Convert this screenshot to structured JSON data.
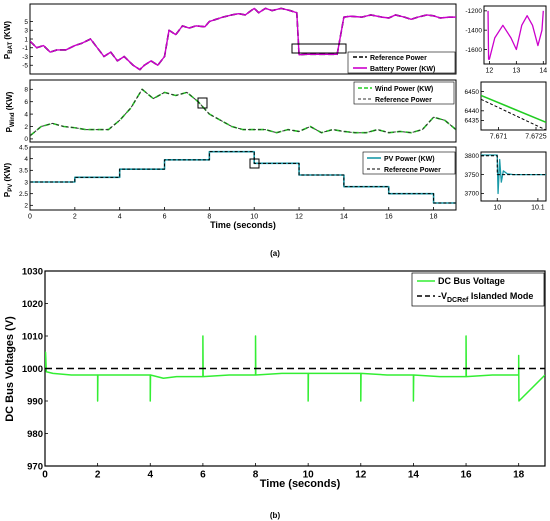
{
  "captions": {
    "a": "(a)",
    "b": "(b)"
  },
  "chart_data": [
    {
      "id": "bat",
      "type": "line",
      "ylabel": "P_BAT (KW)",
      "xlim": [
        0,
        19
      ],
      "ylim": [
        -7,
        9
      ],
      "yticks": [
        -5,
        -3,
        -1,
        1,
        3,
        5
      ],
      "xticks": [],
      "grid": false,
      "legend_position": "bottom-right",
      "series": [
        {
          "name": "Reference Power",
          "color": "#000000",
          "dash": "6 3",
          "width": 1.6,
          "x": [
            0,
            0.3,
            0.6,
            0.9,
            1.2,
            1.6,
            2.0,
            2.3,
            2.7,
            3.0,
            3.3,
            3.6,
            3.9,
            4.2,
            4.6,
            4.9,
            5.1,
            5.4,
            5.7,
            6.0,
            6.2,
            6.5,
            6.8,
            7.1,
            7.4,
            7.8,
            8.0,
            8.3,
            8.6,
            9.0,
            9.3,
            9.6,
            10.0,
            10.2,
            10.5,
            10.8,
            11.2,
            11.6,
            11.9,
            12.0,
            12.3,
            12.8,
            13.2,
            13.7,
            14.0,
            14.3,
            14.8,
            15.2,
            15.7,
            16.0,
            16.3,
            16.7,
            17.0,
            17.3,
            17.7,
            18.0,
            18.3,
            18.7,
            19.0
          ],
          "y": [
            0.5,
            -1,
            -0.5,
            -2,
            -1.5,
            -1.5,
            -0.5,
            0,
            1,
            -1,
            -3,
            -2,
            -4,
            -3,
            -5,
            -6,
            -5,
            -4,
            -5,
            -3,
            3,
            2,
            4,
            3.5,
            4,
            3.8,
            5,
            5.5,
            6,
            6.5,
            6.8,
            6.5,
            8,
            7,
            8,
            7.5,
            8,
            7.5,
            7,
            -2.6,
            -2.5,
            -2.5,
            -2.5,
            -2.5,
            6,
            6.2,
            6,
            6.5,
            6,
            5.8,
            6.5,
            6,
            5.5,
            6,
            6.5,
            6.3,
            5.8,
            6,
            6
          ]
        },
        {
          "name": "Battery Power (KW)",
          "color": "#cc00cc",
          "dash": "",
          "width": 1.4,
          "x": [
            0,
            0.3,
            0.6,
            0.9,
            1.2,
            1.6,
            2.0,
            2.3,
            2.7,
            3.0,
            3.3,
            3.6,
            3.9,
            4.2,
            4.6,
            4.9,
            5.1,
            5.4,
            5.7,
            6.0,
            6.2,
            6.5,
            6.8,
            7.1,
            7.4,
            7.8,
            8.0,
            8.3,
            8.6,
            9.0,
            9.3,
            9.6,
            10.0,
            10.2,
            10.5,
            10.8,
            11.2,
            11.6,
            11.9,
            12.0,
            12.3,
            12.8,
            13.2,
            13.7,
            14.0,
            14.3,
            14.8,
            15.2,
            15.7,
            16.0,
            16.3,
            16.7,
            17.0,
            17.3,
            17.7,
            18.0,
            18.3,
            18.7,
            19.0
          ],
          "y": [
            0.5,
            -1,
            -0.5,
            -2,
            -1.5,
            -1.5,
            -0.5,
            0,
            1,
            -1,
            -3,
            -2,
            -4,
            -3,
            -5,
            -6,
            -5,
            -4,
            -5,
            -3,
            3,
            2,
            4,
            3.5,
            4,
            3.8,
            5,
            5.5,
            6,
            6.5,
            6.8,
            6.5,
            8,
            7,
            8,
            7.5,
            8,
            7.5,
            7,
            -2.6,
            -2.5,
            -2.5,
            -2.5,
            -2.5,
            6,
            6.2,
            6,
            6.5,
            6,
            5.8,
            6.5,
            6,
            5.5,
            6,
            6.5,
            6.3,
            5.8,
            6,
            6
          ]
        }
      ]
    },
    {
      "id": "bat_zoom",
      "type": "line",
      "xlim": [
        11.8,
        14.1
      ],
      "ylim": [
        -1750,
        -1150
      ],
      "xticks": [
        12,
        13,
        14
      ],
      "yticks": [
        -1200,
        -1400,
        -1600
      ],
      "series": [
        {
          "name": "",
          "color": "#cc00cc",
          "dash": "",
          "width": 1.3,
          "x": [
            11.95,
            11.97,
            12.0,
            12.2,
            12.5,
            12.8,
            13.0,
            13.2,
            13.4,
            13.6,
            13.8,
            13.95,
            14.0
          ],
          "y": [
            -1200,
            -1700,
            -1700,
            -1480,
            -1350,
            -1480,
            -1600,
            -1350,
            -1250,
            -1350,
            -1560,
            -1400,
            -1200
          ]
        }
      ]
    },
    {
      "id": "wind",
      "type": "line",
      "ylabel": "P_Wind (KW)",
      "xlim": [
        0,
        19
      ],
      "ylim": [
        -0.5,
        9.5
      ],
      "yticks": [
        0,
        2,
        4,
        6,
        8
      ],
      "xticks": [],
      "grid": false,
      "legend_position": "top-right",
      "series": [
        {
          "name": "Wind Power (KW)",
          "color": "#22cc22",
          "dash": "6 3",
          "width": 1.6,
          "x": [
            0,
            0.5,
            1,
            1.5,
            2,
            2.5,
            3,
            3.5,
            4,
            4.5,
            5,
            5.5,
            6,
            6.5,
            7,
            7.5,
            8,
            8.5,
            9,
            9.5,
            10,
            10.5,
            11,
            11.5,
            12,
            12.5,
            13,
            13.5,
            14,
            14.5,
            15,
            15.5,
            16,
            16.5,
            17,
            17.5,
            18,
            18.5,
            19
          ],
          "y": [
            0.5,
            2,
            2.5,
            2,
            1.8,
            1.5,
            1.5,
            1.5,
            3,
            5,
            8,
            6.5,
            7.5,
            7,
            7.5,
            6,
            4,
            3,
            2,
            1.5,
            1.5,
            1.5,
            1,
            1.5,
            1.2,
            2,
            1,
            1.5,
            1.2,
            1,
            1,
            1.5,
            1,
            1.2,
            1,
            1.5,
            3.5,
            3,
            1.5
          ]
        },
        {
          "name": "Reference Power",
          "color": "#333333",
          "dash": "3 2",
          "width": 1.0,
          "x": [
            0,
            0.5,
            1,
            1.5,
            2,
            2.5,
            3,
            3.5,
            4,
            4.5,
            5,
            5.5,
            6,
            6.5,
            7,
            7.5,
            8,
            8.5,
            9,
            9.5,
            10,
            10.5,
            11,
            11.5,
            12,
            12.5,
            13,
            13.5,
            14,
            14.5,
            15,
            15.5,
            16,
            16.5,
            17,
            17.5,
            18,
            18.5,
            19
          ],
          "y": [
            0.5,
            2,
            2.5,
            2,
            1.8,
            1.5,
            1.5,
            1.5,
            3,
            5,
            8,
            6.5,
            7.5,
            7,
            7.5,
            6,
            4,
            3,
            2,
            1.5,
            1.5,
            1.5,
            1,
            1.5,
            1.2,
            2,
            1,
            1.5,
            1.2,
            1,
            1,
            1.5,
            1,
            1.2,
            1,
            1.5,
            3.5,
            3,
            1.5
          ]
        }
      ]
    },
    {
      "id": "wind_zoom",
      "type": "line",
      "xlim": [
        7.6703,
        7.6729
      ],
      "ylim": [
        6430,
        6455
      ],
      "xticks": [
        7.671,
        7.6725
      ],
      "yticks": [
        6450,
        6440,
        6435
      ],
      "series": [
        {
          "name": "",
          "color": "#22cc22",
          "dash": "",
          "width": 1.6,
          "x": [
            7.6703,
            7.6729
          ],
          "y": [
            6448,
            6434
          ]
        },
        {
          "name": "",
          "color": "#000000",
          "dash": "3 2",
          "width": 1.0,
          "x": [
            7.6703,
            7.6729
          ],
          "y": [
            6446,
            6430
          ]
        }
      ]
    },
    {
      "id": "pv",
      "type": "line",
      "ylabel": "P_PV (KW)",
      "xlabel": "Time (seconds)",
      "xlim": [
        0,
        19
      ],
      "ylim": [
        1.8,
        4.5
      ],
      "yticks": [
        2,
        2.5,
        3,
        3.5,
        4,
        4.5
      ],
      "xticks": [
        0,
        2,
        4,
        6,
        8,
        10,
        12,
        14,
        16,
        18
      ],
      "grid": false,
      "legend_position": "top-right",
      "series": [
        {
          "name": "PV Power (KW)",
          "color": "#1a9aa8",
          "dash": "",
          "width": 1.6,
          "x": [
            0,
            2,
            2,
            4,
            4,
            6,
            6,
            8,
            8,
            10,
            10,
            12,
            12,
            14,
            14,
            16,
            16,
            18,
            18,
            19
          ],
          "y": [
            3,
            3,
            3.2,
            3.2,
            3.55,
            3.55,
            3.95,
            3.95,
            4.3,
            4.3,
            3.8,
            3.8,
            3.3,
            3.3,
            2.8,
            2.8,
            2.5,
            2.5,
            2.1,
            2.1
          ]
        },
        {
          "name": "Referecne Power",
          "color": "#000000",
          "dash": "3 2",
          "width": 1.0,
          "x": [
            0,
            2,
            2,
            4,
            4,
            6,
            6,
            8,
            8,
            10,
            10,
            12,
            12,
            14,
            14,
            16,
            16,
            18,
            18,
            19
          ],
          "y": [
            3,
            3,
            3.2,
            3.2,
            3.55,
            3.55,
            3.95,
            3.95,
            4.3,
            4.3,
            3.8,
            3.8,
            3.3,
            3.3,
            2.8,
            2.8,
            2.5,
            2.5,
            2.1,
            2.1
          ]
        }
      ]
    },
    {
      "id": "pv_zoom",
      "type": "line",
      "xlim": [
        9.96,
        10.12
      ],
      "ylim": [
        3680,
        3810
      ],
      "xticks": [
        10,
        10.1
      ],
      "yticks": [
        3800,
        3750,
        3700
      ],
      "series": [
        {
          "name": "",
          "color": "#1a9aa8",
          "dash": "",
          "width": 1.3,
          "x": [
            9.96,
            9.995,
            10.0,
            10.002,
            10.006,
            10.01,
            10.015,
            10.025,
            10.04,
            10.12
          ],
          "y": [
            3802,
            3802,
            3802,
            3700,
            3790,
            3730,
            3760,
            3752,
            3750,
            3750
          ]
        },
        {
          "name": "",
          "color": "#000000",
          "dash": "3 2",
          "width": 1.0,
          "x": [
            9.96,
            10.0,
            10.0,
            10.12
          ],
          "y": [
            3800,
            3800,
            3750,
            3750
          ]
        }
      ]
    },
    {
      "id": "dc",
      "type": "line",
      "ylabel": "DC Bus Voltages (V)",
      "xlabel": "Time (seconds)",
      "xlim": [
        0,
        19
      ],
      "ylim": [
        970,
        1030
      ],
      "yticks": [
        970,
        980,
        990,
        1000,
        1010,
        1020,
        1030
      ],
      "xticks": [
        0,
        2,
        4,
        6,
        8,
        10,
        12,
        14,
        16,
        18
      ],
      "grid": false,
      "legend_position": "top-right",
      "series": [
        {
          "name": "DC Bus Voltage",
          "color": "#33ee33",
          "dash": "",
          "width": 1.5,
          "x": [
            0,
            0.02,
            0.05,
            0.3,
            1,
            1.99,
            2,
            2,
            2.01,
            3,
            3.99,
            4,
            4,
            4.01,
            4.5,
            5,
            5.99,
            6,
            6,
            6.01,
            7,
            7.99,
            8,
            8,
            8.01,
            9,
            9.99,
            10,
            10,
            10.01,
            11,
            11.99,
            12,
            12,
            12.01,
            13,
            13.99,
            14,
            14,
            14.01,
            15,
            15.99,
            16,
            16,
            16.01,
            17,
            17.99,
            18,
            18,
            18.01,
            19
          ],
          "y": [
            1000,
            1005,
            999,
            998.5,
            998,
            998,
            998,
            990,
            998,
            998,
            998,
            998,
            990,
            998,
            997,
            997.5,
            997.5,
            997.5,
            1010,
            997.5,
            998,
            998,
            998,
            1010,
            998,
            998.5,
            998.5,
            998.5,
            990,
            998.5,
            998.5,
            998.5,
            998.5,
            990,
            998.5,
            998,
            998,
            998,
            990,
            998,
            997.5,
            997.5,
            997.5,
            1010,
            997.5,
            998,
            998,
            998,
            1004,
            990,
            998
          ]
        },
        {
          "name": "",
          "color": "#000000",
          "dash": "7 4",
          "width": 1.5,
          "x": [
            0,
            19
          ],
          "y": [
            1000,
            1000
          ]
        }
      ],
      "legend": [
        "DC Bus Voltage",
        "-V",
        "DCRef",
        " Islanded Mode"
      ]
    }
  ]
}
